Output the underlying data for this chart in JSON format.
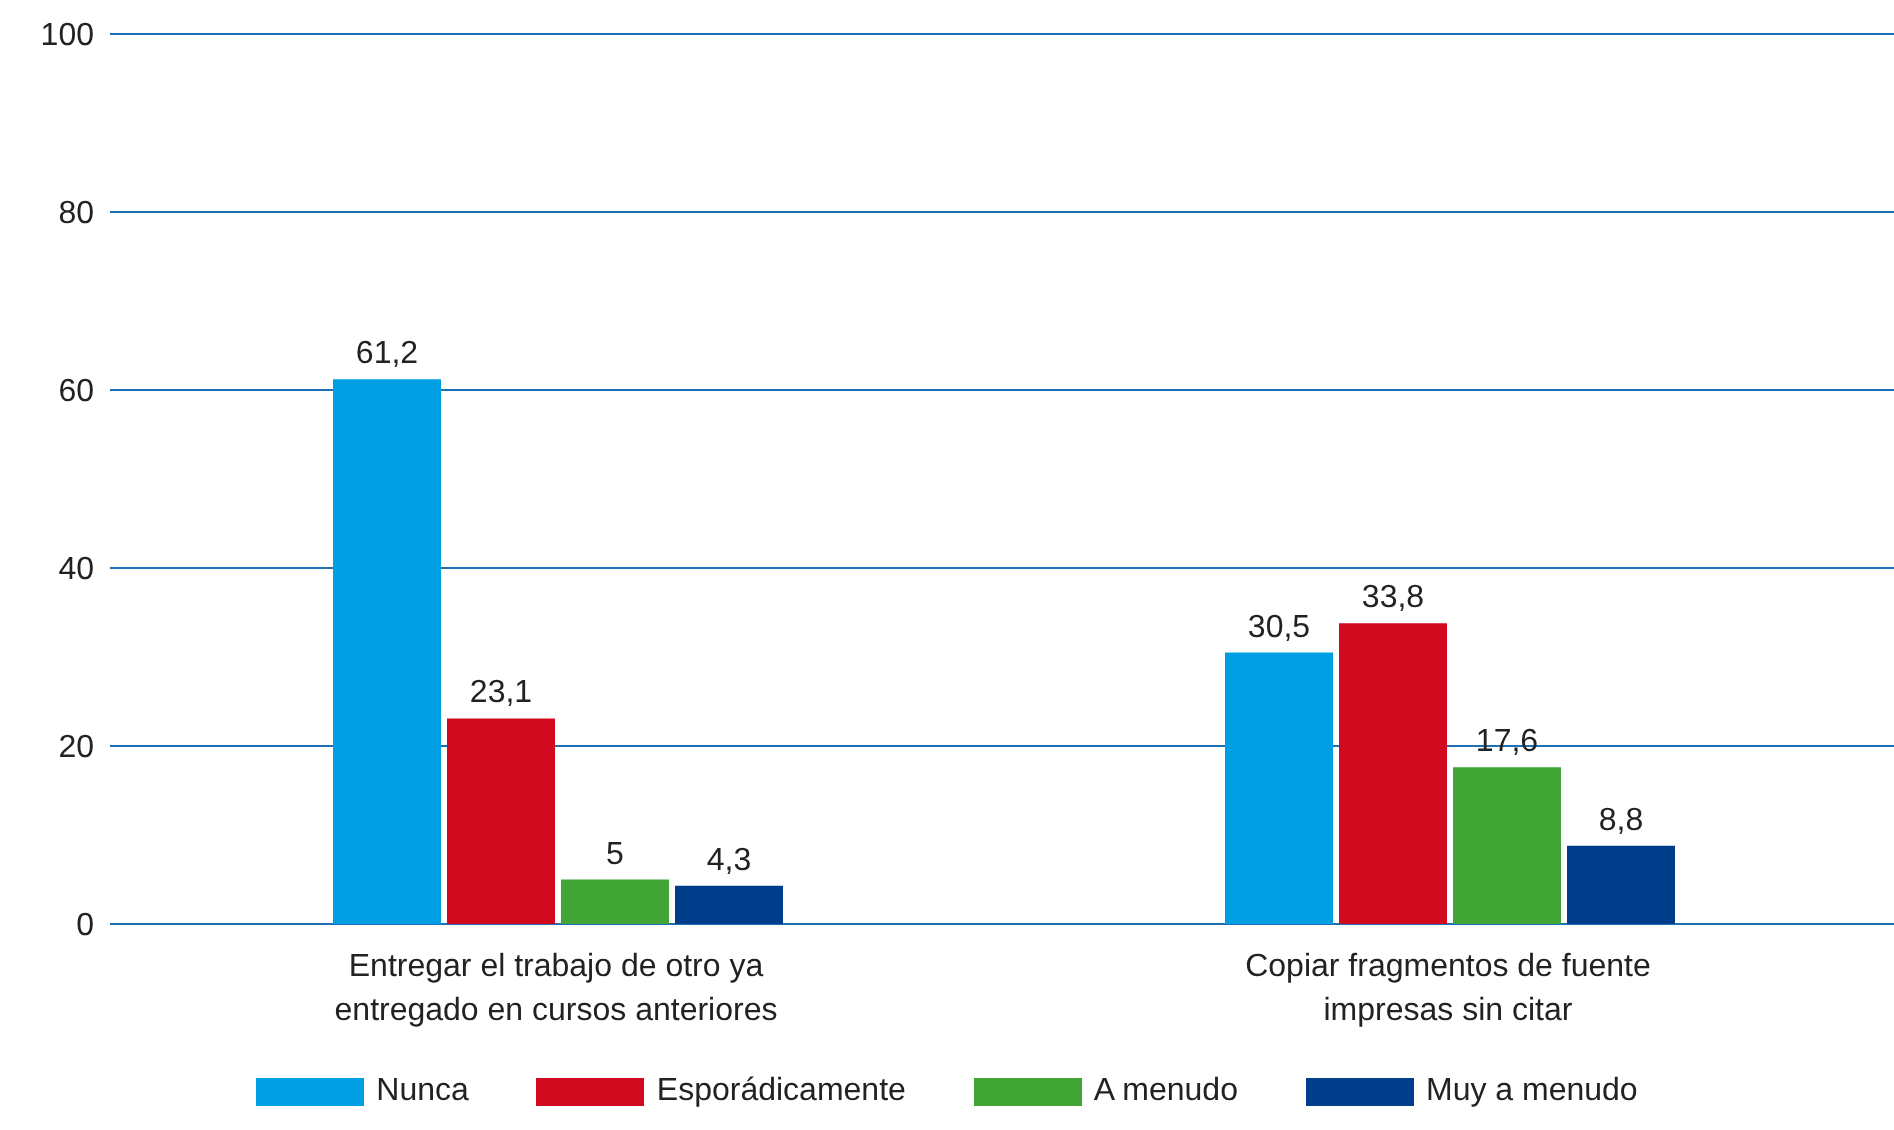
{
  "chart_data": {
    "type": "bar",
    "categories": [
      "Entregar el trabajo de otro ya entregado en cursos anteriores",
      "Copiar fragmentos de fuente impresas sin citar"
    ],
    "series": [
      {
        "name": "Nunca",
        "color": "#009fe3",
        "values": [
          61.2,
          30.5
        ],
        "value_labels": [
          "61,2",
          "30,5"
        ]
      },
      {
        "name": "Esporádicamente",
        "color": "#d20a20",
        "values": [
          23.1,
          33.8
        ],
        "value_labels": [
          "23,1",
          "33,8"
        ]
      },
      {
        "name": "A menudo",
        "color": "#3fa535",
        "values": [
          5,
          17.6
        ],
        "value_labels": [
          "5",
          "17,6"
        ]
      },
      {
        "name": "Muy a menudo",
        "color": "#003d8a",
        "values": [
          4.3,
          8.8
        ],
        "value_labels": [
          "4,3",
          "8,8"
        ]
      }
    ],
    "ylim": [
      0,
      100
    ],
    "yticks": [
      0,
      20,
      40,
      60,
      80,
      100
    ],
    "grid": "y",
    "legend": "bottom"
  }
}
